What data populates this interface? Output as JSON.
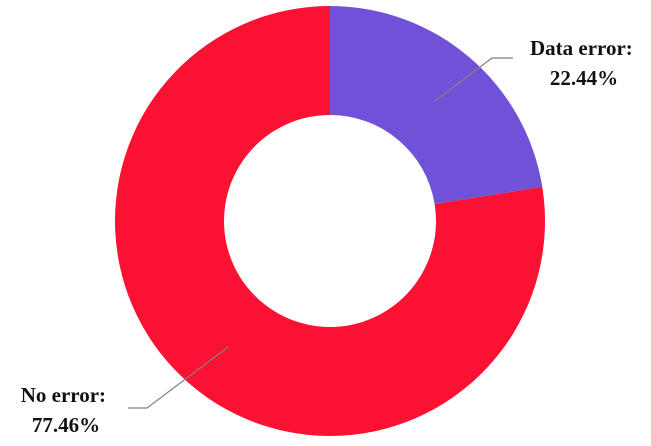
{
  "chart_data": {
    "type": "pie",
    "donut": true,
    "start_angle_deg": 0,
    "direction": "clockwise",
    "slices": [
      {
        "label": "Data error",
        "value": 22.44,
        "label_text": "Data error:",
        "value_text": "22.44%",
        "color": "#6f52d8"
      },
      {
        "label": "No error",
        "value": 77.46,
        "label_text": "No error:",
        "value_text": "77.46%",
        "color": "#fb1232"
      }
    ],
    "legend": "none",
    "grid": false
  },
  "colors": {
    "leader_line": "#808080",
    "background": "#ffffff"
  }
}
